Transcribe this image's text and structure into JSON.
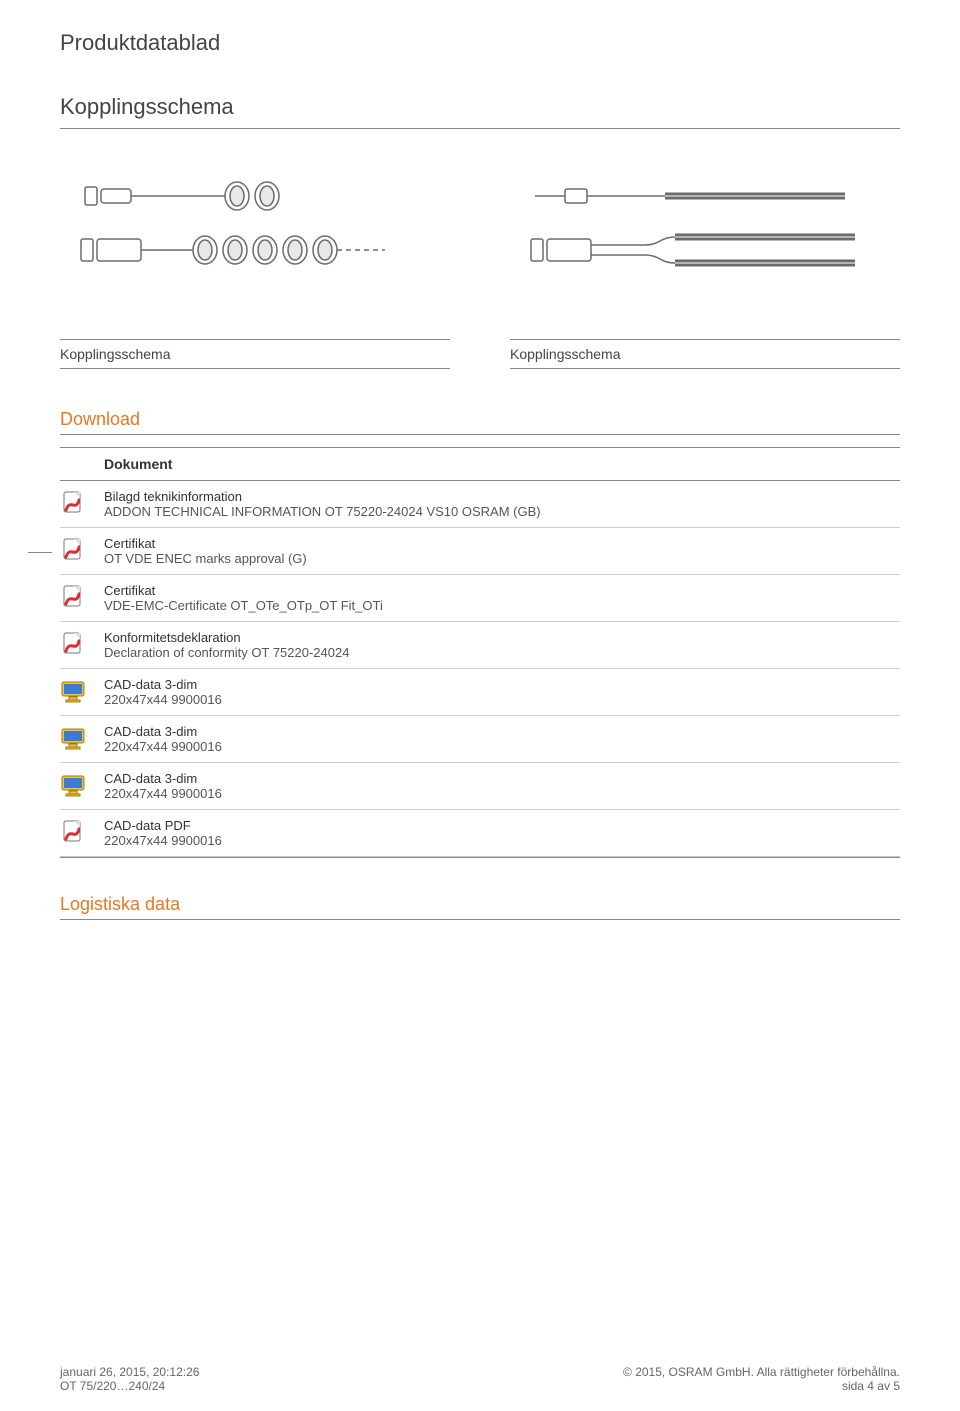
{
  "page_title": "Produktdatablad",
  "kopplings_heading": "Kopplingsschema",
  "captions": {
    "left": "Kopplingsschema",
    "right": "Kopplingsschema"
  },
  "download_heading": "Download",
  "doc_header": "Dokument",
  "docs": [
    {
      "icon": "pdf",
      "title": "Bilagd teknikinformation",
      "sub": "ADDON TECHNICAL INFORMATION OT 75220-24024 VS10 OSRAM (GB)"
    },
    {
      "icon": "pdf",
      "title": "Certifikat",
      "sub": "OT VDE ENEC marks approval (G)"
    },
    {
      "icon": "pdf",
      "title": "Certifikat",
      "sub": "VDE-EMC-Certificate OT_OTe_OTp_OT Fit_OTi"
    },
    {
      "icon": "pdf",
      "title": "Konformitetsdeklaration",
      "sub": "Declaration of conformity  OT 75220-24024"
    },
    {
      "icon": "cad",
      "title": "CAD-data 3-dim",
      "sub": "220x47x44 9900016"
    },
    {
      "icon": "cad",
      "title": "CAD-data 3-dim",
      "sub": "220x47x44 9900016"
    },
    {
      "icon": "cad",
      "title": "CAD-data 3-dim",
      "sub": "220x47x44 9900016"
    },
    {
      "icon": "pdf",
      "title": "CAD-data PDF",
      "sub": "220x47x44 9900016"
    }
  ],
  "logistics_heading": "Logistiska data",
  "footer": {
    "date": "januari 26, 2015, 20:12:26",
    "product": "OT 75/220…240/24",
    "copyright": "© 2015, OSRAM GmbH. Alla rättigheter förbehållna.",
    "page": "sida 4 av 5"
  },
  "colors": {
    "orange": "#e87722",
    "rule_dark": "#888888",
    "rule_light": "#cccccc",
    "text": "#333333",
    "icon_pdf_red": "#d92f2f",
    "icon_pdf_page": "#ffffff",
    "icon_cad_yellow": "#f2c335",
    "icon_cad_screen": "#3a7bd5",
    "svg_stroke": "#6b6b6b",
    "svg_fill": "#ffffff"
  }
}
